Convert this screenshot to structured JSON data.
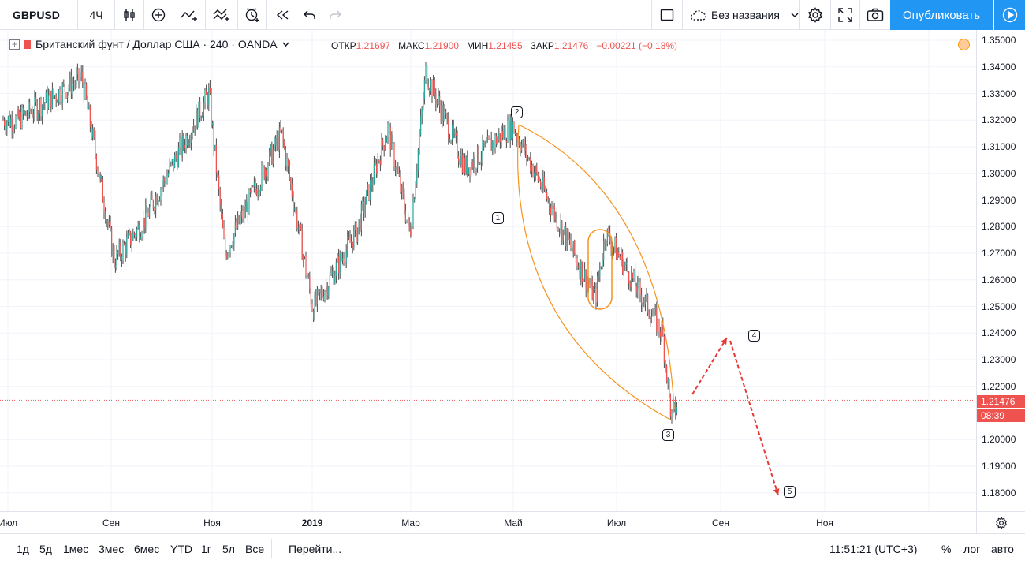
{
  "toolbar": {
    "symbol": "GBPUSD",
    "interval": "4Ч",
    "layout_name": "Без названия",
    "publish_label": "Опубликовать",
    "icons": [
      "candles-icon",
      "add-indicator-icon",
      "compare-icon",
      "indicators-icon",
      "alert-icon",
      "replay-icon",
      "undo-icon",
      "redo-icon",
      "fullscreen-square-icon",
      "cloud-icon",
      "chevron-down-icon",
      "gear-icon",
      "expand-icon",
      "camera-icon",
      "play-icon"
    ]
  },
  "legend": {
    "title": "Британский фунт / Доллар США · 240 · OANDA",
    "ohlc": [
      {
        "label": "ОТКР",
        "value": "1.21697"
      },
      {
        "label": "МАКС",
        "value": "1.21900"
      },
      {
        "label": "МИН",
        "value": "1.21455"
      },
      {
        "label": "ЗАКР",
        "value": "1.21476"
      }
    ],
    "change": "−0.00221 (−0.18%)"
  },
  "colors": {
    "up": "#26a69a",
    "down": "#ef5350",
    "candle": "#4a4a4a",
    "annotation": "#f7931e",
    "arrow": "#e53935",
    "accent": "#2196f3"
  },
  "price_axis": {
    "ticks": [
      "1.35000",
      "1.34000",
      "1.33000",
      "1.32000",
      "1.31000",
      "1.30000",
      "1.29000",
      "1.28000",
      "1.27000",
      "1.26000",
      "1.25000",
      "1.24000",
      "1.23000",
      "1.22000",
      "1.21000",
      "1.20000",
      "1.19000",
      "1.18000"
    ],
    "current_price": "1.21476",
    "countdown": "08:39"
  },
  "time_axis": {
    "labels": [
      {
        "text": "Июл",
        "bold": false
      },
      {
        "text": "Сен",
        "bold": false
      },
      {
        "text": "Ноя",
        "bold": false
      },
      {
        "text": "2019",
        "bold": true
      },
      {
        "text": "Мар",
        "bold": false
      },
      {
        "text": "Май",
        "bold": false
      },
      {
        "text": "Июл",
        "bold": false
      },
      {
        "text": "Сен",
        "bold": false
      },
      {
        "text": "Ноя",
        "bold": false
      }
    ]
  },
  "wave_labels": [
    "1",
    "2",
    "3",
    "4",
    "5"
  ],
  "chart_data": {
    "type": "candlestick",
    "symbol": "GBPUSD",
    "timeframe": "240",
    "ylim": [
      1.175,
      1.353
    ],
    "key_points": [
      {
        "period": "2018-07",
        "price": 1.32
      },
      {
        "period": "2018-07",
        "price": 1.336
      },
      {
        "period": "2018-08",
        "price": 1.267
      },
      {
        "period": "2018-09",
        "price": 1.282
      },
      {
        "period": "2018-10",
        "price": 1.33
      },
      {
        "period": "2018-10",
        "price": 1.27
      },
      {
        "period": "2018-11",
        "price": 1.315
      },
      {
        "period": "2018-12",
        "price": 1.249
      },
      {
        "period": "2019-01",
        "price": 1.278
      },
      {
        "period": "2019-01",
        "price": 1.317
      },
      {
        "period": "2019-02",
        "price": 1.277
      },
      {
        "period": "2019-03",
        "price": 1.338
      },
      {
        "period": "2019-04",
        "price": 1.302
      },
      {
        "period": "2019-05",
        "price": 1.318
      },
      {
        "period": "2019-06",
        "price": 1.253
      },
      {
        "period": "2019-06",
        "price": 1.278
      },
      {
        "period": "2019-07",
        "price": 1.24
      },
      {
        "period": "2019-08",
        "price": 1.207
      },
      {
        "period": "2019-08",
        "price": 1.2148
      }
    ]
  },
  "bottom": {
    "ranges": [
      "1д",
      "5д",
      "1мес",
      "3мес",
      "6мес",
      "YTD",
      "1г",
      "5л",
      "Все"
    ],
    "goto": "Перейти...",
    "time": "11:51:21 (UTC+3)",
    "percent": "%",
    "log": "лог",
    "auto": "авто"
  }
}
